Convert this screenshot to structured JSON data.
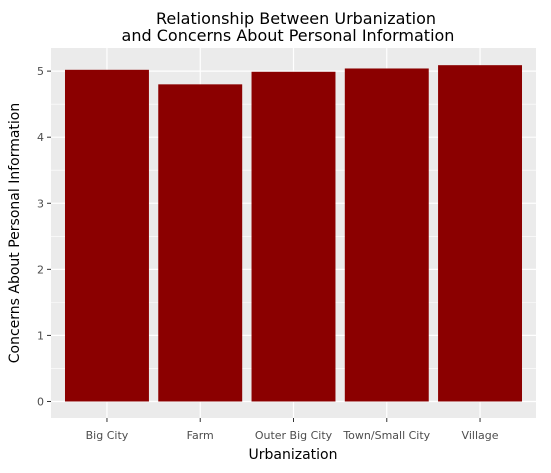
{
  "chart_data": {
    "type": "bar",
    "title_lines": [
      "Relationship Between Urbanization",
      "and Concerns About Personal Information"
    ],
    "xlabel": "Urbanization",
    "ylabel": "Concerns About Personal Information",
    "categories": [
      "Big City",
      "Farm",
      "Outer Big City",
      "Town/Small City",
      "Village"
    ],
    "values": [
      5.02,
      4.8,
      4.99,
      5.04,
      5.09
    ],
    "ylim": [
      -0.25,
      5.35
    ],
    "yticks": [
      "0",
      "1",
      "2",
      "3",
      "4",
      "5"
    ],
    "bar_color": "#8b0000",
    "panel_background": "#ebebeb",
    "grid": true,
    "legend": "none"
  }
}
